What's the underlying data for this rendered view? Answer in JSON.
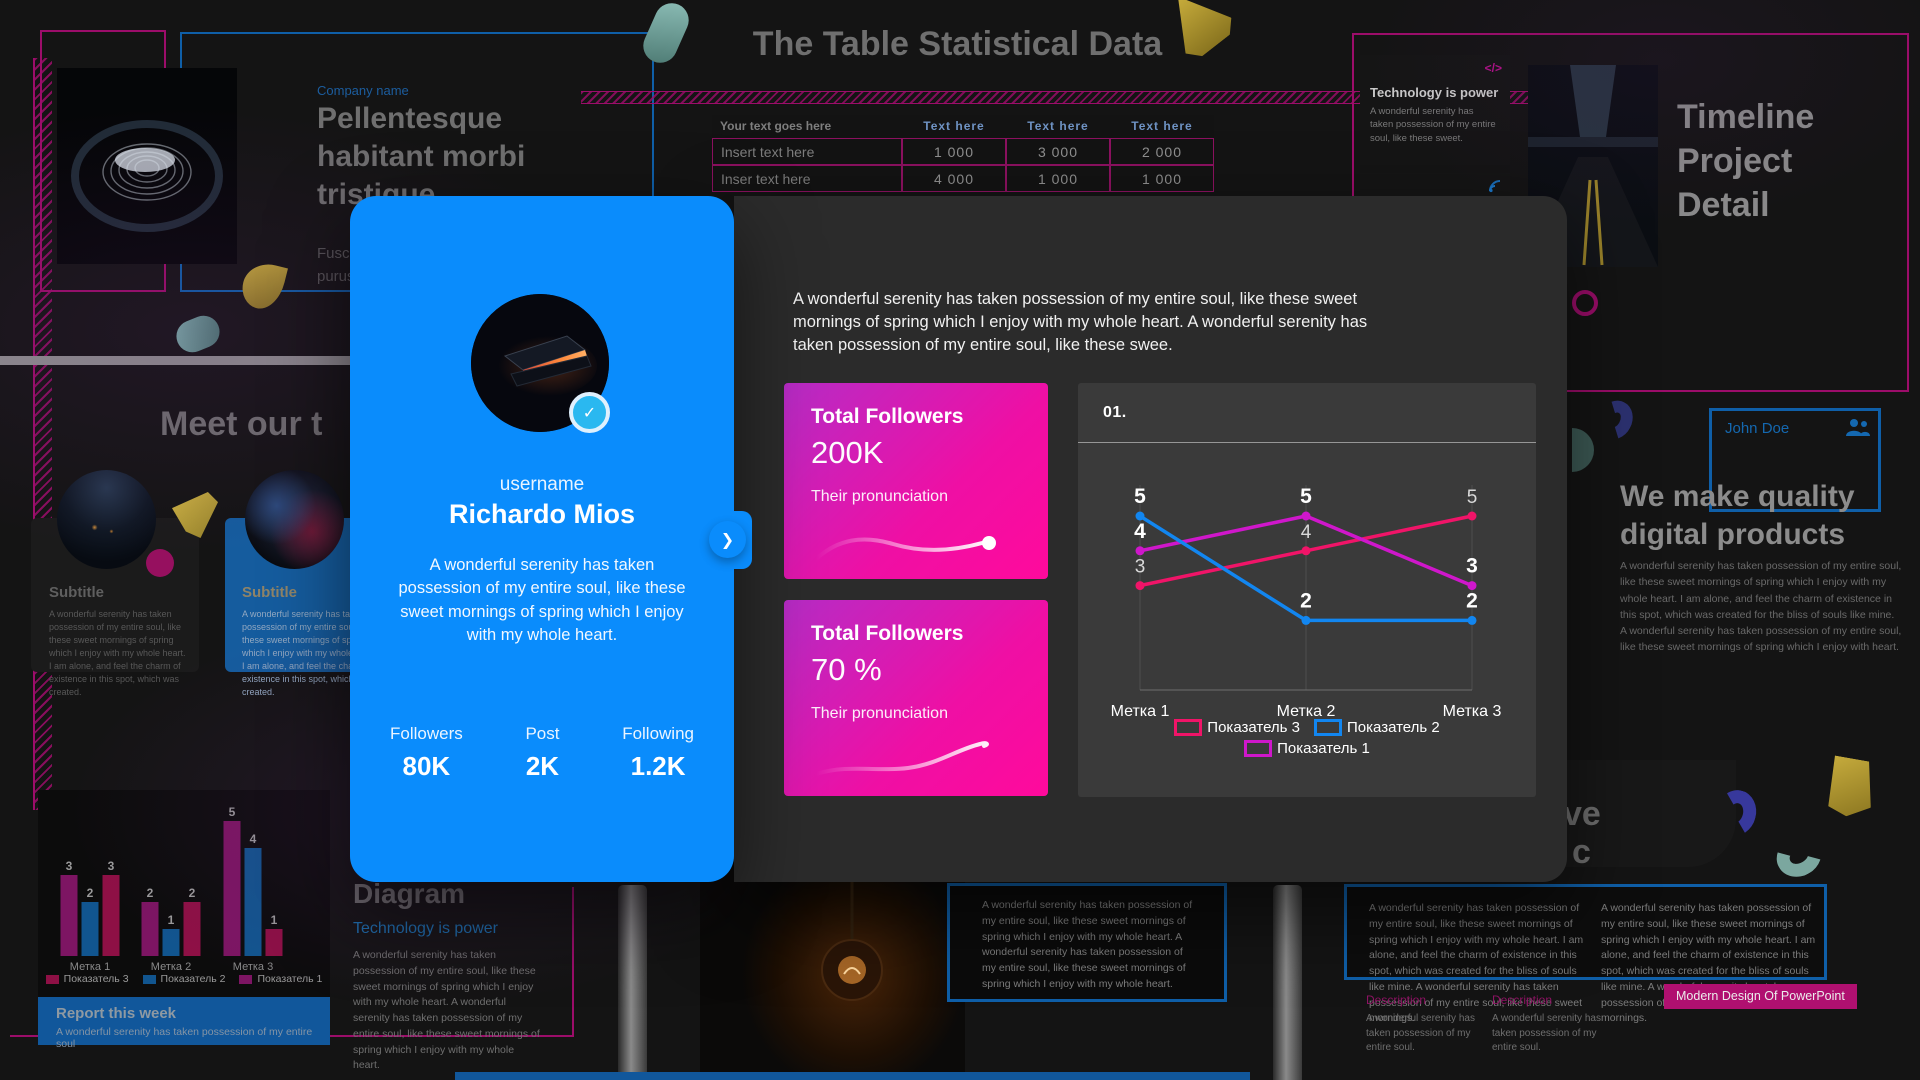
{
  "modal": {
    "profile": {
      "username_label": "username",
      "name": "Richardo Mios",
      "bio": "A wonderful serenity has taken possession of my entire soul, like these sweet mornings of spring which I enjoy with my whole heart.",
      "stats": [
        {
          "label": "Followers",
          "value": "80K"
        },
        {
          "label": "Post",
          "value": "2K"
        },
        {
          "label": "Following",
          "value": "1.2K"
        }
      ],
      "verified_check": "✓",
      "next_chevron": "❯"
    },
    "intro": "A wonderful serenity has taken possession of my entire soul, like these sweet mornings of spring which I enjoy with my whole heart. A wonderful serenity has taken possession of my entire soul, like these swee.",
    "metric_cards": [
      {
        "title": "Total Followers",
        "value": "200K",
        "caption": "Their pronunciation"
      },
      {
        "title": "Total Followers",
        "value": "70 %",
        "caption": "Their pronunciation"
      }
    ],
    "chart_panel": {
      "index_label": "01."
    }
  },
  "chart_data": [
    {
      "id": "indicators-line",
      "type": "line",
      "title": "01.",
      "categories": [
        "Метка 1",
        "Метка 2",
        "Метка 3"
      ],
      "series": [
        {
          "name": "Показатель 1",
          "color": "#cf17cb",
          "values": [
            4,
            5,
            3
          ],
          "label_bold": true
        },
        {
          "name": "Показатель 2",
          "color": "#1286f0",
          "values": [
            5,
            2,
            2
          ],
          "label_bold": true
        },
        {
          "name": "Показатель 3",
          "color": "#f01468",
          "values": [
            3,
            4,
            5
          ],
          "label_bold": false
        }
      ],
      "legend_rows": [
        [
          "Показатель 3",
          "Показатель 2"
        ],
        [
          "Показатель 1"
        ]
      ],
      "ylim": [
        0,
        5
      ],
      "grid": "vertical-gridlines",
      "legend_position": "bottom"
    },
    {
      "id": "weekly-report-bars",
      "type": "bar",
      "categories": [
        "Метка 1",
        "Метка 2",
        "Метка 3"
      ],
      "series": [
        {
          "name": "Показатель 1",
          "color": "#7d1563",
          "values": [
            3,
            2,
            5
          ]
        },
        {
          "name": "Показатель 2",
          "color": "#11558f",
          "values": [
            2,
            1,
            4
          ]
        },
        {
          "name": "Показатель 3",
          "color": "#8e1045",
          "values": [
            3,
            2,
            1
          ]
        }
      ],
      "legend_rows": [
        [
          "Показатель 3",
          "Показатель 2",
          "Показатель 1"
        ]
      ],
      "ylim": [
        0,
        5
      ],
      "legend_position": "bottom"
    }
  ],
  "slides": {
    "pellentesque": {
      "company_label": "Company name",
      "title": "Pellentesque habitant morbi tristique",
      "body_line1": "Fusce posue",
      "body_line2": "purus lectus"
    },
    "table_slide": {
      "title": "The Table Statistical Data",
      "table": {
        "headers": [
          "Your text goes here",
          "Text here",
          "Text here",
          "Text here"
        ],
        "rows": [
          [
            "Insert text here",
            "1 000",
            "3 000",
            "2 000"
          ],
          [
            "Inser text here",
            "4 000",
            "1 000",
            "1 000"
          ]
        ]
      }
    },
    "timeline": {
      "title": "Timeline Project Detail",
      "card_title": "Technology is power",
      "card_body": "A wonderful serenity has taken possession of my entire soul, like these sweet.",
      "code_glyph": "</>"
    },
    "team": {
      "title_fragment": "Meet our t",
      "cards": [
        {
          "subtitle": "Subtitle",
          "body": "A wonderful serenity has taken possession of my entire soul, like these sweet mornings of spring which I enjoy with my whole heart. I am alone, and feel the charm of existence in this spot, which was created."
        },
        {
          "subtitle": "Subtitle",
          "body": "A wonderful serenity has taken possession of my entire soul, like these sweet mornings of spring which I enjoy with my whole heart. I am alone, and feel the charm of existence in this spot, which was created."
        }
      ]
    },
    "quality": {
      "author": "John Doe",
      "title": "We make quality digital products",
      "body": "A wonderful serenity has taken possession of my entire soul, like these sweet mornings of spring which I enjoy with my whole heart. I am alone, and feel the charm of existence in this spot, which was created for the bliss of souls like mine. A wonderful serenity has taken possession of my entire soul, like these sweet mornings of spring which I enjoy with heart."
    },
    "report": {
      "footer_title": "Report this week",
      "footer_body": "A wonderful serenity has taken possession of my entire soul"
    },
    "diagram": {
      "title": "Diagram",
      "subtitle": "Technology is power",
      "body": "A wonderful serenity has taken possession of my entire soul, like these sweet mornings of spring which I enjoy with my whole heart. A wonderful serenity has taken possession of my entire soul, like these sweet mornings of spring which I enjoy with my whole heart."
    },
    "note": {
      "body": "A wonderful serenity has taken possession of my entire soul, like these sweet mornings of spring which I enjoy with my whole heart. A wonderful serenity has taken possession of my entire soul, like these sweet mornings of spring which I enjoy with my whole heart."
    },
    "modern": {
      "heading_fragment_1": "ve",
      "heading_fragment_2": "c",
      "column_1": "A wonderful serenity has taken possession of my entire soul, like these sweet mornings of spring which I enjoy with my whole heart. I am alone, and feel the charm of existence in this spot, which was created for the bliss of souls like mine. A wonderful serenity has taken possession of my entire soul, like these sweet mornings.",
      "column_2": "A wonderful serenity has taken possession of my entire soul, like these sweet mornings of spring which I enjoy with my whole heart. I am alone, and feel the charm of existence in this spot, which was created for the bliss of souls like mine. A wonderful serenity has taken possession of my entire soul, like these sweet mornings.",
      "description_label": "Description",
      "description_body": "A wonderful serenity has taken possession of my entire soul.",
      "badge": "Modern Design Of PowerPoint"
    }
  },
  "colors": {
    "accent_blue": "#0a8cfc",
    "verified_badge_blue": "#2ab8f0",
    "modal_bg": "#2b2b2b",
    "chart_panel_bg": "#3a3a3a",
    "pink_gradient_start": "#b62cc6",
    "pink_gradient_end": "#ff0a9c",
    "magenta_border": "#9c0d6a",
    "blue_border": "#0f5fa8",
    "table_header_bg": "#11589e",
    "report_band_bg": "#11579b",
    "badge_pink_bg": "#b01070"
  }
}
